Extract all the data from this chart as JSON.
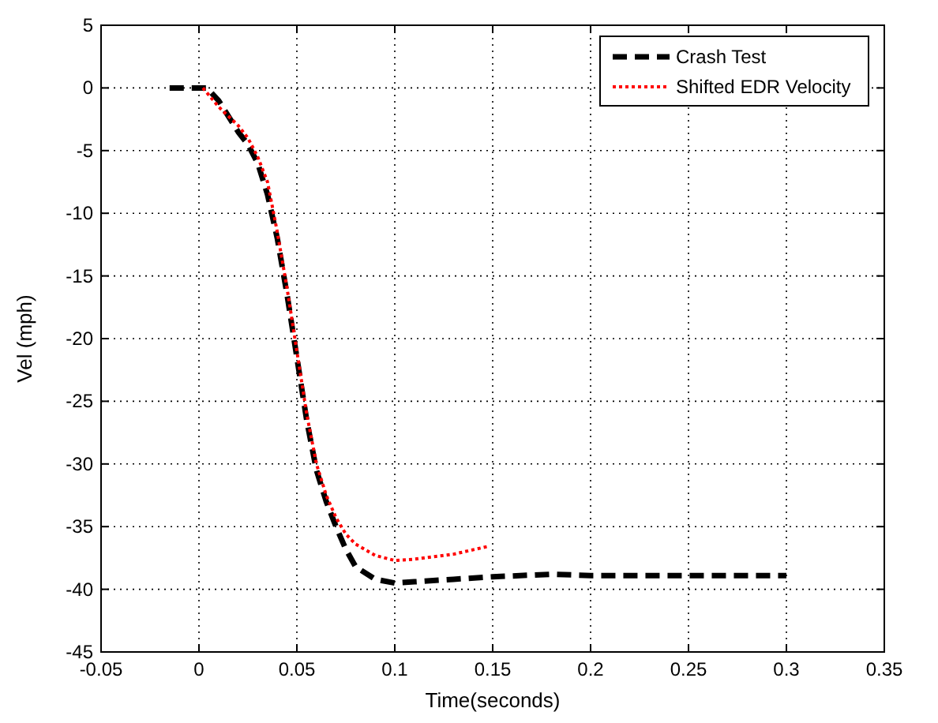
{
  "chart_data": {
    "type": "line",
    "xlabel": "Time(seconds)",
    "ylabel": "Vel (mph)",
    "xlim": [
      -0.05,
      0.35
    ],
    "ylim": [
      -45,
      5
    ],
    "xticks": [
      -0.05,
      0,
      0.05,
      0.1,
      0.15,
      0.2,
      0.25,
      0.3,
      0.35
    ],
    "yticks": [
      -45,
      -40,
      -35,
      -30,
      -25,
      -20,
      -15,
      -10,
      -5,
      0,
      5
    ],
    "grid": true,
    "legend": "top right",
    "series": [
      {
        "name": "Crash Test",
        "color": "#000000",
        "line_style": "dashed",
        "x": [
          -0.015,
          0.004,
          0.01,
          0.012,
          0.02,
          0.025,
          0.03,
          0.035,
          0.04,
          0.045,
          0.05,
          0.055,
          0.06,
          0.065,
          0.07,
          0.075,
          0.08,
          0.09,
          0.1,
          0.11,
          0.13,
          0.15,
          0.18,
          0.2,
          0.25,
          0.3
        ],
        "values": [
          0,
          0,
          -1,
          -1.5,
          -3.5,
          -4.5,
          -6,
          -8.5,
          -12,
          -16.5,
          -21.5,
          -26.5,
          -30.5,
          -33,
          -35,
          -36.8,
          -38.2,
          -39.2,
          -39.5,
          -39.4,
          -39.2,
          -39,
          -38.8,
          -38.9,
          -38.9,
          -38.9
        ]
      },
      {
        "name": "Shifted EDR Velocity",
        "color": "#ff0000",
        "line_style": "dotted",
        "x": [
          0.002,
          0.01,
          0.02,
          0.025,
          0.03,
          0.035,
          0.04,
          0.045,
          0.05,
          0.055,
          0.06,
          0.065,
          0.07,
          0.075,
          0.08,
          0.09,
          0.1,
          0.11,
          0.13,
          0.147
        ],
        "values": [
          0,
          -1.5,
          -3,
          -4,
          -5.5,
          -7.5,
          -11.5,
          -16,
          -21,
          -26,
          -30,
          -32.5,
          -34.3,
          -35.6,
          -36.4,
          -37.3,
          -37.7,
          -37.6,
          -37.2,
          -36.6
        ]
      }
    ]
  }
}
